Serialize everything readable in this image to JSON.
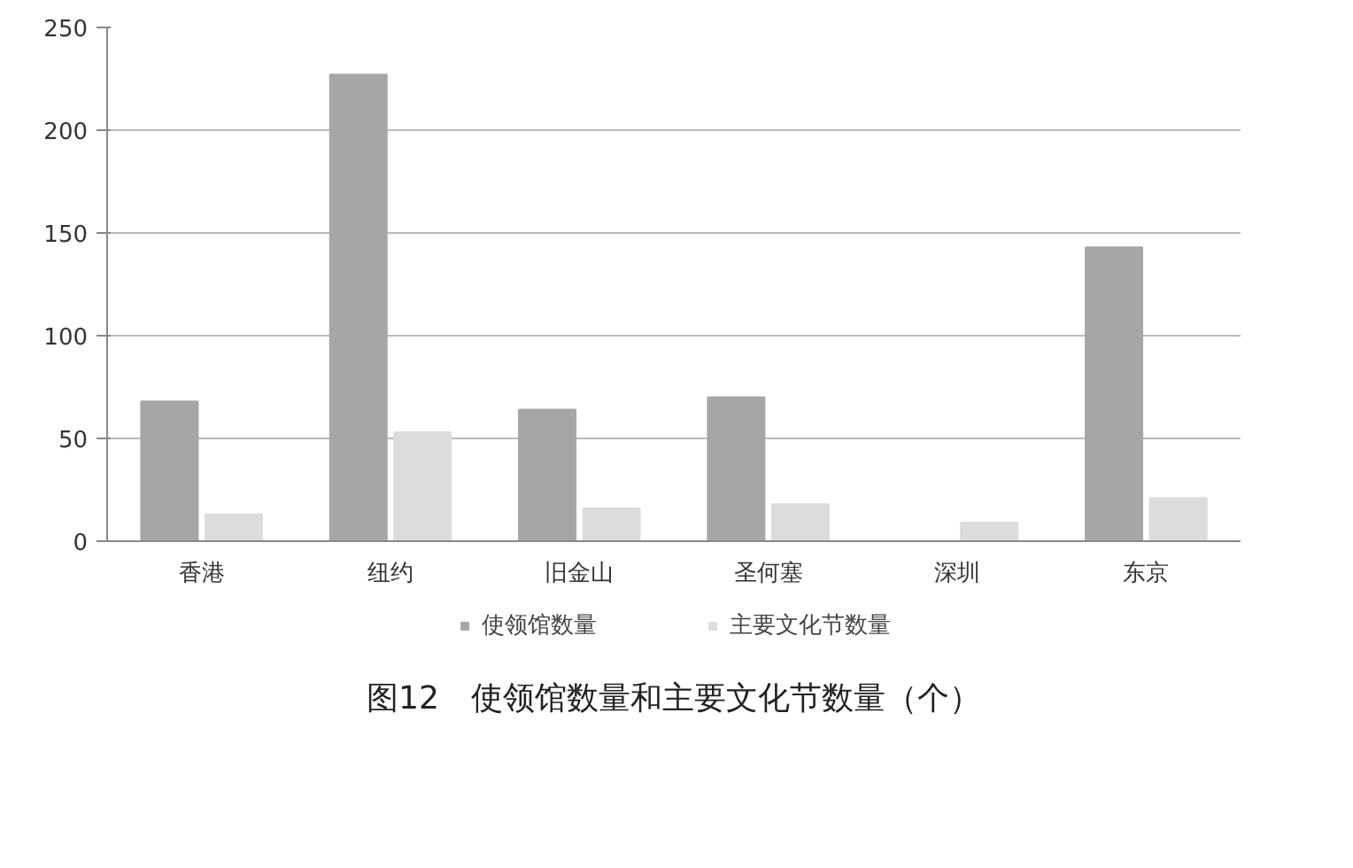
{
  "chart_data": {
    "type": "bar",
    "title": "图12　使领馆数量和主要文化节数量（个）",
    "categories": [
      "香港",
      "纽约",
      "旧金山",
      "圣何塞",
      "深圳",
      "东京"
    ],
    "series": [
      {
        "name": "使领馆数量",
        "color": "#a6a6a6",
        "values": [
          68,
          227,
          64,
          70,
          0,
          143
        ]
      },
      {
        "name": "主要文化节数量",
        "color": "#dcdcdc",
        "values": [
          13,
          53,
          16,
          18,
          9,
          21
        ]
      }
    ],
    "ylim": [
      0,
      250
    ],
    "yticks": [
      0,
      50,
      100,
      150,
      200,
      250
    ],
    "grid": "y",
    "legend": "bottom"
  }
}
